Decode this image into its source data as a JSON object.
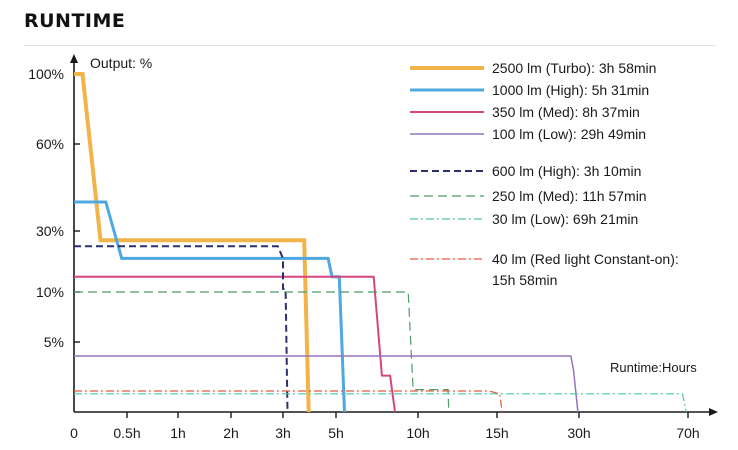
{
  "section_title": "RUNTIME",
  "chart_data": {
    "type": "line",
    "ylabel": "Output: %",
    "xlabel": "Runtime:Hours",
    "y_ticks": [
      "100%",
      "60%",
      "30%",
      "10%",
      "5%"
    ],
    "x_ticks": [
      "0",
      "0.5h",
      "1h",
      "2h",
      "3h",
      "5h",
      "10h",
      "15h",
      "30h",
      "70h"
    ],
    "axis_note": "non-linear axes; x values are runtime in hours, y values are output in %",
    "series": [
      {
        "name": "2500 lm (Turbo): 3h 58min",
        "color": "#F0B44B",
        "dash": "solid",
        "width": 4,
        "points": [
          [
            0,
            100
          ],
          [
            0.08,
            100
          ],
          [
            0.25,
            27
          ],
          [
            3.8,
            27
          ],
          [
            3.97,
            0
          ]
        ]
      },
      {
        "name": "1000 lm (High): 5h 31min",
        "color": "#4FA8DF",
        "dash": "solid",
        "width": 3,
        "points": [
          [
            0,
            40
          ],
          [
            0.3,
            40
          ],
          [
            0.45,
            21
          ],
          [
            4.7,
            21
          ],
          [
            4.85,
            15
          ],
          [
            5.2,
            15
          ],
          [
            5.52,
            0
          ]
        ]
      },
      {
        "name": "350 lm (Med): 8h 37min",
        "color": "#D6457F",
        "dash": "solid",
        "width": 2,
        "points": [
          [
            0,
            15
          ],
          [
            7.3,
            15
          ],
          [
            7.8,
            2.6
          ],
          [
            8.3,
            2.6
          ],
          [
            8.6,
            0
          ]
        ]
      },
      {
        "name": "100 lm (Low): 29h 49min",
        "color": "#9575BE",
        "dash": "solid",
        "width": 1.5,
        "points": [
          [
            0,
            4
          ],
          [
            28.5,
            4
          ],
          [
            29,
            3
          ],
          [
            29.8,
            0
          ]
        ]
      },
      {
        "name": "600 lm (High): 3h 10min",
        "color": "#29306B",
        "dash": "7,4",
        "width": 2,
        "points": [
          [
            0,
            25
          ],
          [
            2.9,
            25
          ],
          [
            3.0,
            21
          ],
          [
            3.0,
            11
          ],
          [
            3.1,
            11
          ],
          [
            3.17,
            0
          ]
        ]
      },
      {
        "name": "250 lm (Med): 11h 57min",
        "color": "#4E9C68",
        "dash": "9,5",
        "width": 1.2,
        "points": [
          [
            0,
            10
          ],
          [
            9.4,
            10
          ],
          [
            9.7,
            1.6
          ],
          [
            11.9,
            1.6
          ],
          [
            11.95,
            0
          ]
        ]
      },
      {
        "name": "30 lm (Low): 69h 21min",
        "color": "#4FC6A7",
        "dash": "8,3,2,3",
        "width": 1.2,
        "points": [
          [
            0,
            1.3
          ],
          [
            68,
            1.3
          ],
          [
            69.35,
            0
          ]
        ]
      },
      {
        "name": "40 lm (Red light Constant-on): 15h 58min",
        "color": "#E35A3E",
        "dash": "8,3,2,3",
        "width": 1.2,
        "points": [
          [
            0,
            1.5
          ],
          [
            14.5,
            1.5
          ],
          [
            15.5,
            1.3
          ],
          [
            15.95,
            0
          ]
        ]
      }
    ],
    "legend_position": "top-right",
    "grid": false
  }
}
